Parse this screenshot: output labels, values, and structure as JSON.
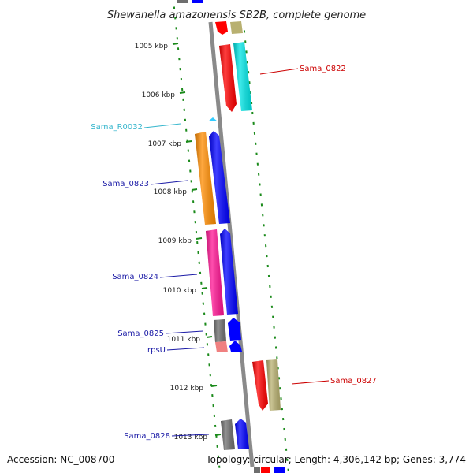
{
  "header": {
    "title": "Shewanella amazonensis SB2B, complete genome"
  },
  "footer": {
    "accession": "Accession: NC_008700",
    "summary": "Topology: circular; Length: 4,306,142 bp; Genes: 3,774"
  },
  "scale_labels": [
    "1005 kbp",
    "1006 kbp",
    "1007 kbp",
    "1008 kbp",
    "1009 kbp",
    "1010 kbp",
    "1011 kbp",
    "1012 kbp",
    "1013 kbp"
  ],
  "gene_labels": [
    {
      "text": "Sama_0822",
      "color": "#cc0000"
    },
    {
      "text": "Sama_R0032",
      "color": "#33b5cc"
    },
    {
      "text": "Sama_0823",
      "color": "#1a1aa6"
    },
    {
      "text": "Sama_0824",
      "color": "#1a1aa6"
    },
    {
      "text": "Sama_0825",
      "color": "#1a1aa6"
    },
    {
      "text": "rpsU",
      "color": "#1a1aa6"
    },
    {
      "text": "Sama_0827",
      "color": "#cc0000"
    },
    {
      "text": "Sama_0828",
      "color": "#1a1aa6"
    }
  ],
  "colors": {
    "red": "#ff0000",
    "blue": "#0000ff",
    "cyan": "#00e5e5",
    "orange": "#ff8c00",
    "pink": "#ff1493",
    "gray": "#6e6e6e",
    "khaki": "#b8b070",
    "salmon": "#f08080",
    "light-blue": "#33ccff",
    "backbone": "#8a8a8a",
    "dots": "#1a8a1a"
  }
}
